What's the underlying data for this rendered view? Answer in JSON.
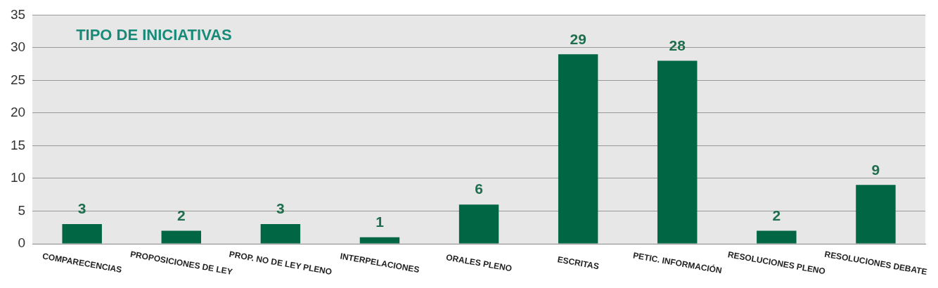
{
  "chart_data": {
    "type": "bar",
    "title": "TIPO DE INICIATIVAS",
    "categories": [
      "COMPARECENCIAS",
      "PROPOSICIONES DE LEY",
      "PROP. NO DE LEY PLENO",
      "INTERPELACIONES",
      "ORALES PLENO",
      "ESCRITAS",
      "PETIC. INFORMACIÓN",
      "RESOLUCIONES PLENO",
      "RESOLUCIONES DEBATE"
    ],
    "values": [
      3,
      2,
      3,
      1,
      6,
      29,
      28,
      2,
      9
    ],
    "color": "#006644",
    "ylim": [
      0,
      35
    ],
    "yticks": [
      0,
      5,
      10,
      15,
      20,
      25,
      30,
      35
    ],
    "grid": "y",
    "legend": false,
    "data_labels": true
  }
}
